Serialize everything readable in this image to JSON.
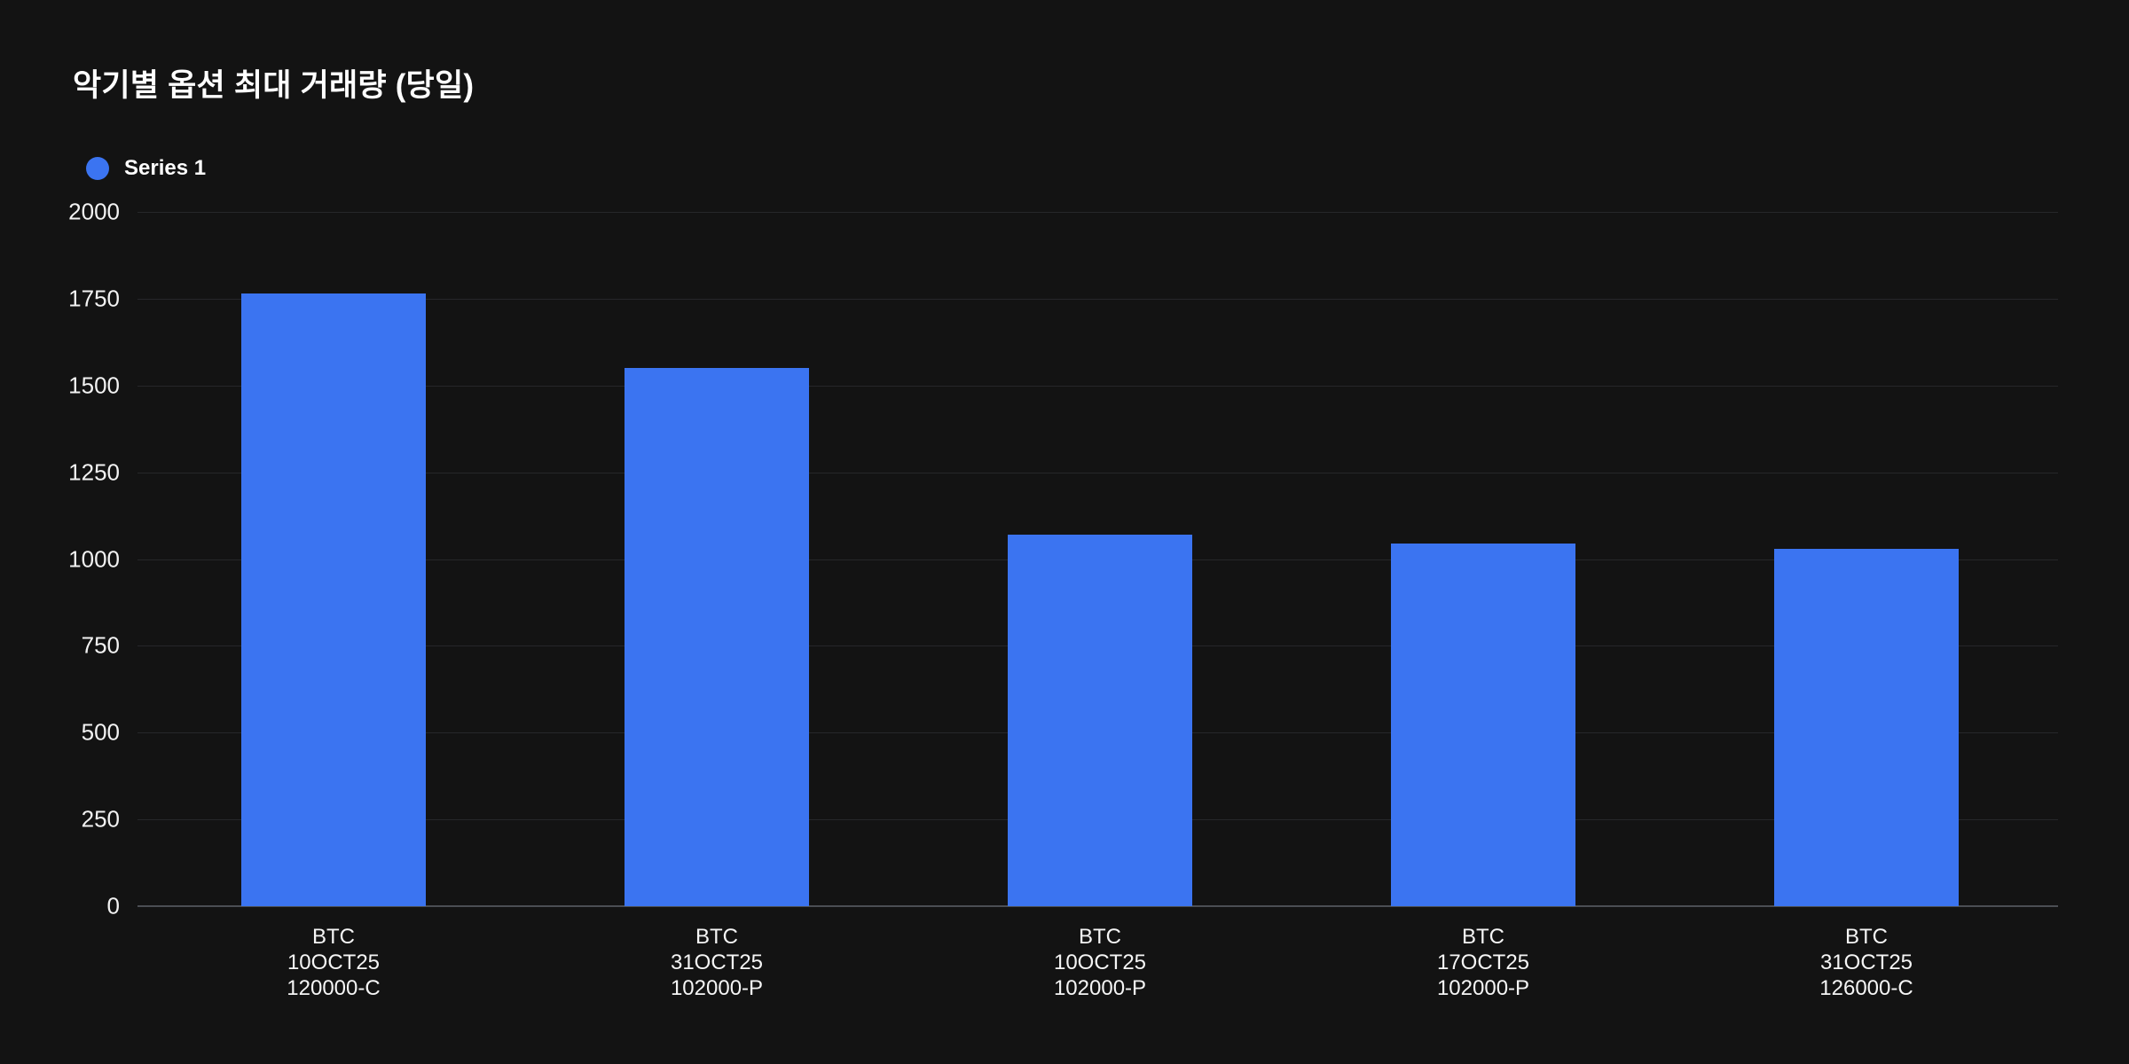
{
  "header": {
    "title": "악기별 옵션 최대 거래량 (당일)"
  },
  "legend": {
    "items": [
      {
        "label": "Series 1",
        "color": "#3b74f1"
      }
    ]
  },
  "chart_data": {
    "type": "bar",
    "title": "악기별 옵션 최대 거래량 (당일)",
    "series": [
      {
        "name": "Series 1",
        "values": [
          1765,
          1550,
          1070,
          1045,
          1030
        ]
      }
    ],
    "categories": [
      [
        "BTC",
        "10OCT25",
        "120000-C"
      ],
      [
        "BTC",
        "31OCT25",
        "102000-P"
      ],
      [
        "BTC",
        "10OCT25",
        "102000-P"
      ],
      [
        "BTC",
        "17OCT25",
        "102000-P"
      ],
      [
        "BTC",
        "31OCT25",
        "126000-C"
      ]
    ],
    "xlabel": "",
    "ylabel": "",
    "ylim": [
      0,
      2000
    ],
    "yticks": [
      0,
      250,
      500,
      750,
      1000,
      1250,
      1500,
      1750,
      2000
    ],
    "grid": true,
    "legend_position": "top-left",
    "bar_color": "#3b74f1"
  },
  "colors": {
    "background": "#131313",
    "bar": "#3b74f1",
    "gridline": "#26272a",
    "axis_line": "#4b4e53",
    "text": "#ffffff"
  }
}
